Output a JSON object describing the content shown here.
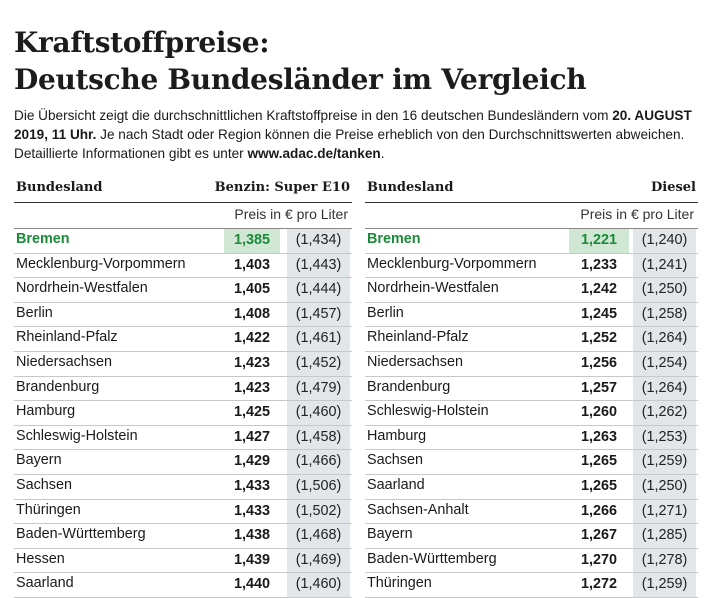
{
  "title": {
    "line1": "Kraftstoffpreise:",
    "line2": "Deutsche Bundesländer im Vergleich"
  },
  "intro": {
    "part1": "Die Übersicht zeigt die durchschnittlichen Kraftstoffpreise in den 16 deutschen Bundesländern vom ",
    "date_bold": "20. AUGUST 2019, 11 Uhr.",
    "part2": " Je nach Stadt oder Region können die Preise erheblich von den Durchschnittswerten abweichen. Detaillierte Informationen gibt es unter ",
    "url_bold": "www.adac.de/tanken",
    "part3": "."
  },
  "benzin": {
    "col_name": "Bundesland",
    "col_fuel": "Benzin:  Super E10",
    "unit": "Preis in € pro Liter",
    "rows": [
      {
        "state": "Bremen",
        "price": "1,385",
        "prev": "(1,434)"
      },
      {
        "state": "Mecklenburg-Vorpommern",
        "price": "1,403",
        "prev": "(1,443)"
      },
      {
        "state": "Nordrhein-Westfalen",
        "price": "1,405",
        "prev": "(1,444)"
      },
      {
        "state": "Berlin",
        "price": "1,408",
        "prev": "(1,457)"
      },
      {
        "state": "Rheinland-Pfalz",
        "price": "1,422",
        "prev": "(1,461)"
      },
      {
        "state": "Niedersachsen",
        "price": "1,423",
        "prev": "(1,452)"
      },
      {
        "state": "Brandenburg",
        "price": "1,423",
        "prev": "(1,479)"
      },
      {
        "state": "Hamburg",
        "price": "1,425",
        "prev": "(1,460)"
      },
      {
        "state": "Schleswig-Holstein",
        "price": "1,427",
        "prev": "(1,458)"
      },
      {
        "state": "Bayern",
        "price": "1,429",
        "prev": "(1,466)"
      },
      {
        "state": "Sachsen",
        "price": "1,433",
        "prev": "(1,506)"
      },
      {
        "state": "Thüringen",
        "price": "1,433",
        "prev": "(1,502)"
      },
      {
        "state": "Baden-Württemberg",
        "price": "1,438",
        "prev": "(1,468)"
      },
      {
        "state": "Hessen",
        "price": "1,439",
        "prev": "(1,469)"
      },
      {
        "state": "Saarland",
        "price": "1,440",
        "prev": "(1,460)"
      }
    ]
  },
  "diesel": {
    "col_name": "Bundesland",
    "col_fuel": "Diesel",
    "unit": "Preis in € pro Liter",
    "rows": [
      {
        "state": "Bremen",
        "price": "1,221",
        "prev": "(1,240)"
      },
      {
        "state": "Mecklenburg-Vorpommern",
        "price": "1,233",
        "prev": "(1,241)"
      },
      {
        "state": "Nordrhein-Westfalen",
        "price": "1,242",
        "prev": "(1,250)"
      },
      {
        "state": "Berlin",
        "price": "1,245",
        "prev": "(1,258)"
      },
      {
        "state": "Rheinland-Pfalz",
        "price": "1,252",
        "prev": "(1,264)"
      },
      {
        "state": "Niedersachsen",
        "price": "1,256",
        "prev": "(1,254)"
      },
      {
        "state": "Brandenburg",
        "price": "1,257",
        "prev": "(1,264)"
      },
      {
        "state": "Schleswig-Holstein",
        "price": "1,260",
        "prev": "(1,262)"
      },
      {
        "state": "Hamburg",
        "price": "1,263",
        "prev": "(1,253)"
      },
      {
        "state": "Sachsen",
        "price": "1,265",
        "prev": "(1,259)"
      },
      {
        "state": "Saarland",
        "price": "1,265",
        "prev": "(1,250)"
      },
      {
        "state": "Sachsen-Anhalt",
        "price": "1,266",
        "prev": "(1,271)"
      },
      {
        "state": "Bayern",
        "price": "1,267",
        "prev": "(1,285)"
      },
      {
        "state": "Baden-Württemberg",
        "price": "1,270",
        "prev": "(1,278)"
      },
      {
        "state": "Thüringen",
        "price": "1,272",
        "prev": "(1,259)"
      }
    ]
  },
  "colors": {
    "highlight_green": "#1d8a3a",
    "highlight_bg": "#cfe7d3",
    "column_gray": "#e3e6e8"
  }
}
